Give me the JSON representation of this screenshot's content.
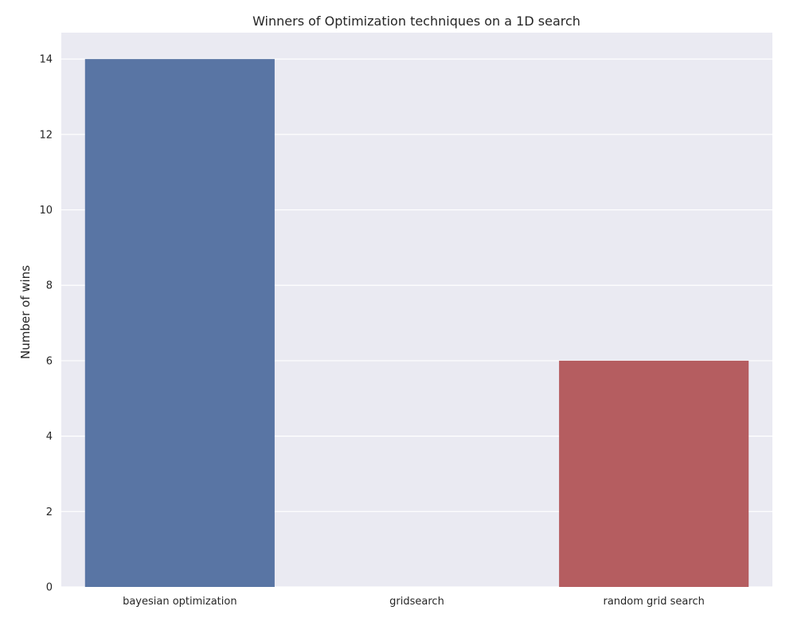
{
  "chart_data": {
    "type": "bar",
    "title": "Winners of Optimization techniques on a 1D search",
    "xlabel": "",
    "ylabel": "Number of wins",
    "categories": [
      "bayesian optimization",
      "gridsearch",
      "random grid search"
    ],
    "values": [
      14,
      0,
      6
    ],
    "ylim": [
      0,
      14.7
    ],
    "yticks": [
      0,
      2,
      4,
      6,
      8,
      10,
      12,
      14
    ],
    "grid": true,
    "legend": "none",
    "colors": {
      "background": "#EAEAF2",
      "grid": "#FFFFFF",
      "bars": [
        "#5975A4",
        "#5F9E6E",
        "#B55D60"
      ]
    }
  }
}
